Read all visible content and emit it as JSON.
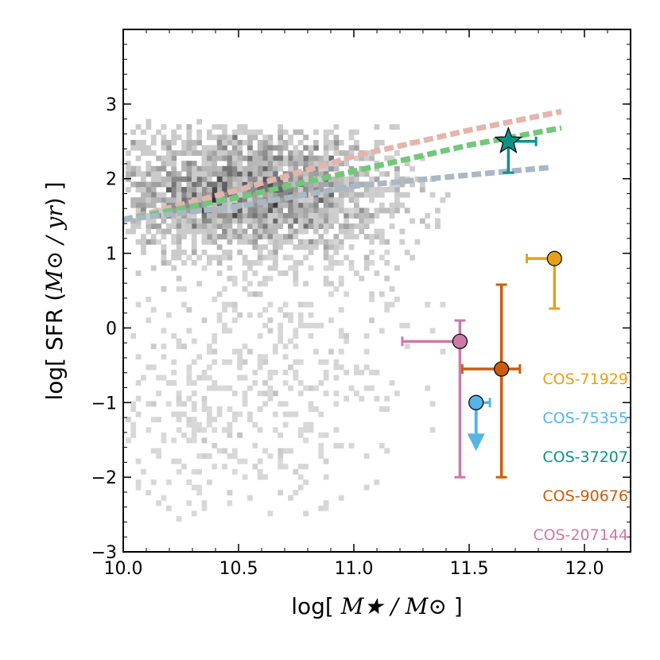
{
  "chart_data": {
    "type": "scatter",
    "title": "",
    "xlabel_prefix": "log[ ",
    "xlabel_math": "M★ / M⊙",
    "xlabel_suffix": " ]",
    "ylabel_prefix": "log[ SFR (",
    "ylabel_math": "M⊙ / yr",
    "ylabel_suffix": ") ]",
    "xlim": [
      10.0,
      12.2
    ],
    "ylim": [
      -3.0,
      4.0
    ],
    "xticks": [
      "10.0",
      "10.5",
      "11.0",
      "11.5",
      "12.0"
    ],
    "xtick_values": [
      10.0,
      10.5,
      11.0,
      11.5,
      12.0
    ],
    "yticks": [
      "−3",
      "−2",
      "−1",
      "0",
      "1",
      "2",
      "3"
    ],
    "ytick_values": [
      -3,
      -2,
      -1,
      0,
      1,
      2,
      3
    ],
    "main_sequence_lines": [
      {
        "name": "main-sequence-pink",
        "color": "#e3b5ad",
        "points": [
          [
            10.0,
            1.45
          ],
          [
            10.5,
            1.85
          ],
          [
            11.0,
            2.3
          ],
          [
            11.5,
            2.65
          ],
          [
            11.9,
            2.9
          ]
        ]
      },
      {
        "name": "main-sequence-green",
        "color": "#72c77b",
        "points": [
          [
            10.0,
            1.45
          ],
          [
            10.5,
            1.75
          ],
          [
            11.0,
            2.1
          ],
          [
            11.5,
            2.45
          ],
          [
            11.9,
            2.68
          ]
        ]
      },
      {
        "name": "main-sequence-gray",
        "color": "#a9b8c4",
        "points": [
          [
            10.0,
            1.45
          ],
          [
            10.5,
            1.63
          ],
          [
            11.0,
            1.9
          ],
          [
            11.5,
            2.05
          ],
          [
            11.85,
            2.15
          ]
        ]
      }
    ],
    "series": [
      {
        "name": "COS-71929",
        "color": "#e6a01b",
        "marker": "circle",
        "x": 11.87,
        "y": 0.93,
        "xerr": [
          0.12,
          0.0
        ],
        "yerr": [
          0.67,
          0.0
        ],
        "upper_limit": false
      },
      {
        "name": "COS-75355",
        "color": "#56b4e9",
        "marker": "circle",
        "x": 11.53,
        "y": -1.0,
        "xerr": [
          0.0,
          0.06
        ],
        "yerr": [
          0.0,
          0.0
        ],
        "upper_limit": true
      },
      {
        "name": "COS-37207",
        "color": "#0f9187",
        "marker": "star",
        "x": 11.67,
        "y": 2.5,
        "xerr": [
          0.0,
          0.12
        ],
        "yerr": [
          0.42,
          0.0
        ],
        "upper_limit": false
      },
      {
        "name": "COS-90676",
        "color": "#cc5c0a",
        "marker": "circle",
        "x": 11.64,
        "y": -0.55,
        "xerr": [
          0.17,
          0.08
        ],
        "yerr": [
          1.45,
          1.13
        ],
        "upper_limit": false
      },
      {
        "name": "COS-207144",
        "color": "#cc79a7",
        "marker": "circle",
        "x": 11.46,
        "y": -0.18,
        "xerr": [
          0.25,
          0.0
        ],
        "yerr": [
          1.82,
          0.28
        ],
        "upper_limit": false
      }
    ],
    "legend_placement": "lower-right",
    "background_density": {
      "description": "2D histogram of galaxies (grayscale)",
      "blobs": [
        {
          "x": 10.45,
          "y": 1.85,
          "sx": 0.33,
          "sy": 0.42,
          "n": 1700,
          "weight": 1.0
        },
        {
          "x": 10.75,
          "y": 1.75,
          "sx": 0.28,
          "sy": 0.5,
          "n": 700,
          "weight": 0.8
        },
        {
          "x": 10.6,
          "y": -0.5,
          "sx": 0.45,
          "sy": 0.9,
          "n": 450,
          "weight": 0.5
        },
        {
          "x": 10.4,
          "y": -1.6,
          "sx": 0.3,
          "sy": 0.5,
          "n": 120,
          "weight": 0.35
        }
      ]
    }
  }
}
